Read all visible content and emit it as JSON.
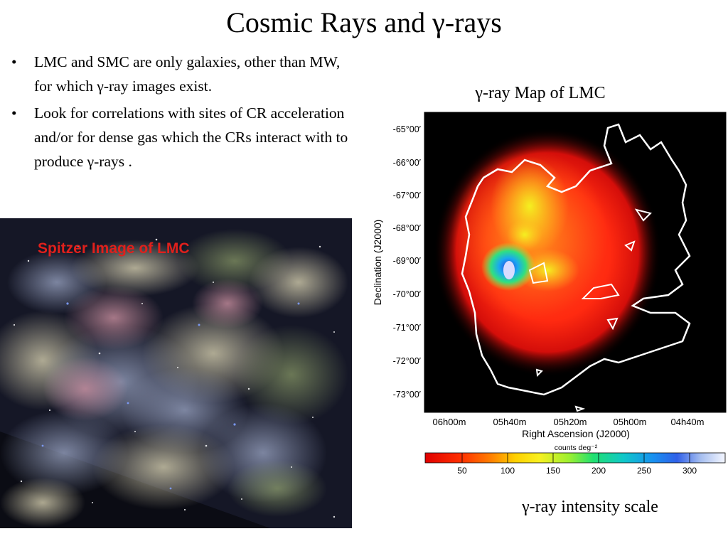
{
  "slide": {
    "title": "Cosmic Rays and γ-rays",
    "bullets": [
      "LMC and SMC are only galaxies, other than MW,  for which γ-ray images exist.",
      "Look for correlations with sites of CR acceleration and/or for dense gas which  the CRs interact with to produce γ-rays ."
    ]
  },
  "spitzer": {
    "label": "Spitzer Image of LMC",
    "label_color": "#e0201c"
  },
  "gamma_map": {
    "caption": "γ-ray Map of LMC",
    "y_axis_title": "Declination (J2000)",
    "y_ticks": [
      "-65°00′",
      "-66°00′",
      "-67°00′",
      "-68°00′",
      "-69°00′",
      "-70°00′",
      "-71°00′",
      "-72°00′",
      "-73°00′"
    ],
    "x_axis_title": "Right Ascension (J2000)",
    "x_ticks": [
      "06h00m",
      "05h40m",
      "05h20m",
      "05h00m",
      "04h40m"
    ],
    "colorbar_units": "counts deg⁻²",
    "colorbar_ticks": [
      "50",
      "100",
      "150",
      "200",
      "250",
      "300"
    ]
  },
  "scale_caption": "γ-ray intensity scale"
}
